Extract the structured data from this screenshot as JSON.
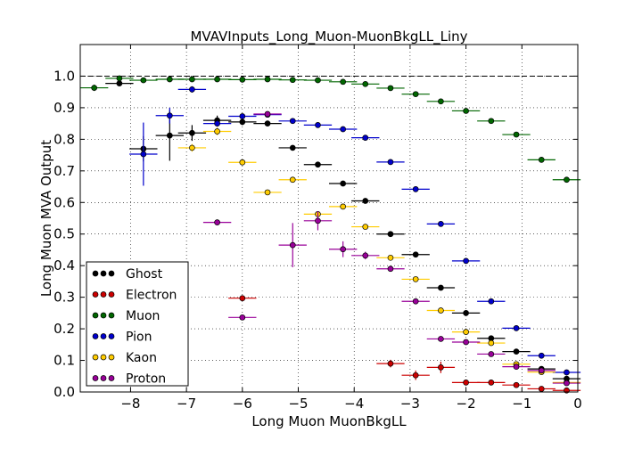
{
  "chart_data": {
    "type": "scatter",
    "title": "MVAVInputs_Long_Muon-MuonBkgLL_Liny",
    "xlabel": "Long Muon MuonBkgLL",
    "ylabel": "Long Muon MVA Output",
    "xlim": [
      -8.9,
      0
    ],
    "ylim": [
      0,
      1.1
    ],
    "xticks": [
      -8,
      -7,
      -6,
      -5,
      -4,
      -3,
      -2,
      -1,
      0
    ],
    "xtick_labels": [
      "−8",
      "−7",
      "−6",
      "−5",
      "−4",
      "−3",
      "−2",
      "−1",
      "0"
    ],
    "yticks": [
      0.0,
      0.1,
      0.2,
      0.3,
      0.4,
      0.5,
      0.6,
      0.7,
      0.8,
      0.9,
      1.0
    ],
    "ytick_labels": [
      "0.0",
      "0.1",
      "0.2",
      "0.3",
      "0.4",
      "0.5",
      "0.6",
      "0.7",
      "0.8",
      "0.9",
      "1.0"
    ],
    "grid": true,
    "reference_line_y": 1.0,
    "legend_position": "lower-left",
    "series": [
      {
        "name": "Ghost",
        "color": "#000000",
        "points": [
          {
            "x": -8.2,
            "y": 0.977,
            "xerr": 0.25,
            "yerr": 0.005
          },
          {
            "x": -7.77,
            "y": 0.77,
            "xerr": 0.25,
            "yerr": 0.04
          },
          {
            "x": -7.3,
            "y": 0.812,
            "xerr": 0.25,
            "yerr": 0.08
          },
          {
            "x": -6.9,
            "y": 0.82,
            "xerr": 0.25,
            "yerr": 0.025
          },
          {
            "x": -6.45,
            "y": 0.86,
            "xerr": 0.25,
            "yerr": 0.015
          },
          {
            "x": -6.0,
            "y": 0.855,
            "xerr": 0.25,
            "yerr": 0.01
          },
          {
            "x": -5.55,
            "y": 0.85,
            "xerr": 0.25,
            "yerr": 0.008
          },
          {
            "x": -5.1,
            "y": 0.773,
            "xerr": 0.25,
            "yerr": 0.006
          },
          {
            "x": -4.65,
            "y": 0.72,
            "xerr": 0.25,
            "yerr": 0.005
          },
          {
            "x": -4.2,
            "y": 0.66,
            "xerr": 0.25,
            "yerr": 0.004
          },
          {
            "x": -3.8,
            "y": 0.605,
            "xerr": 0.25,
            "yerr": 0.004
          },
          {
            "x": -3.35,
            "y": 0.5,
            "xerr": 0.25,
            "yerr": 0.004
          },
          {
            "x": -2.9,
            "y": 0.435,
            "xerr": 0.25,
            "yerr": 0.004
          },
          {
            "x": -2.45,
            "y": 0.33,
            "xerr": 0.25,
            "yerr": 0.004
          },
          {
            "x": -2.0,
            "y": 0.25,
            "xerr": 0.25,
            "yerr": 0.004
          },
          {
            "x": -1.55,
            "y": 0.17,
            "xerr": 0.25,
            "yerr": 0.004
          },
          {
            "x": -1.1,
            "y": 0.128,
            "xerr": 0.25,
            "yerr": 0.003
          },
          {
            "x": -0.65,
            "y": 0.073,
            "xerr": 0.25,
            "yerr": 0.003
          },
          {
            "x": -0.2,
            "y": 0.042,
            "xerr": 0.25,
            "yerr": 0.003
          }
        ]
      },
      {
        "name": "Electron",
        "color": "#cc0000",
        "points": [
          {
            "x": -6.0,
            "y": 0.297,
            "xerr": 0.25,
            "yerr": 0.005
          },
          {
            "x": -3.35,
            "y": 0.09,
            "xerr": 0.25,
            "yerr": 0.012
          },
          {
            "x": -2.9,
            "y": 0.053,
            "xerr": 0.25,
            "yerr": 0.015
          },
          {
            "x": -2.45,
            "y": 0.078,
            "xerr": 0.25,
            "yerr": 0.018
          },
          {
            "x": -2.0,
            "y": 0.03,
            "xerr": 0.25,
            "yerr": 0.004
          },
          {
            "x": -1.55,
            "y": 0.03,
            "xerr": 0.25,
            "yerr": 0.004
          },
          {
            "x": -1.1,
            "y": 0.022,
            "xerr": 0.25,
            "yerr": 0.003
          },
          {
            "x": -0.65,
            "y": 0.01,
            "xerr": 0.25,
            "yerr": 0.002
          },
          {
            "x": -0.2,
            "y": 0.005,
            "xerr": 0.25,
            "yerr": 0.002
          }
        ]
      },
      {
        "name": "Muon",
        "color": "#006600",
        "points": [
          {
            "x": -8.65,
            "y": 0.963,
            "xerr": 0.25,
            "yerr": 0.01
          },
          {
            "x": -8.2,
            "y": 0.993,
            "xerr": 0.25,
            "yerr": 0.005
          },
          {
            "x": -7.77,
            "y": 0.987,
            "xerr": 0.25,
            "yerr": 0.003
          },
          {
            "x": -7.3,
            "y": 0.99,
            "xerr": 0.25,
            "yerr": 0.003
          },
          {
            "x": -6.9,
            "y": 0.99,
            "xerr": 0.25,
            "yerr": 0.003
          },
          {
            "x": -6.45,
            "y": 0.99,
            "xerr": 0.25,
            "yerr": 0.003
          },
          {
            "x": -6.0,
            "y": 0.989,
            "xerr": 0.25,
            "yerr": 0.003
          },
          {
            "x": -5.55,
            "y": 0.99,
            "xerr": 0.25,
            "yerr": 0.003
          },
          {
            "x": -5.1,
            "y": 0.988,
            "xerr": 0.25,
            "yerr": 0.003
          },
          {
            "x": -4.65,
            "y": 0.987,
            "xerr": 0.25,
            "yerr": 0.003
          },
          {
            "x": -4.2,
            "y": 0.982,
            "xerr": 0.25,
            "yerr": 0.003
          },
          {
            "x": -3.8,
            "y": 0.975,
            "xerr": 0.25,
            "yerr": 0.003
          },
          {
            "x": -3.35,
            "y": 0.962,
            "xerr": 0.25,
            "yerr": 0.003
          },
          {
            "x": -2.9,
            "y": 0.943,
            "xerr": 0.25,
            "yerr": 0.003
          },
          {
            "x": -2.45,
            "y": 0.92,
            "xerr": 0.25,
            "yerr": 0.003
          },
          {
            "x": -2.0,
            "y": 0.89,
            "xerr": 0.25,
            "yerr": 0.003
          },
          {
            "x": -1.55,
            "y": 0.858,
            "xerr": 0.25,
            "yerr": 0.003
          },
          {
            "x": -1.1,
            "y": 0.815,
            "xerr": 0.25,
            "yerr": 0.003
          },
          {
            "x": -0.65,
            "y": 0.735,
            "xerr": 0.25,
            "yerr": 0.003
          },
          {
            "x": -0.2,
            "y": 0.672,
            "xerr": 0.25,
            "yerr": 0.003
          }
        ]
      },
      {
        "name": "Pion",
        "color": "#0000cc",
        "points": [
          {
            "x": -7.77,
            "y": 0.753,
            "xerr": 0.25,
            "yerr": 0.1
          },
          {
            "x": -7.3,
            "y": 0.875,
            "xerr": 0.25,
            "yerr": 0.025
          },
          {
            "x": -6.9,
            "y": 0.958,
            "xerr": 0.25,
            "yerr": 0.01
          },
          {
            "x": -6.45,
            "y": 0.85,
            "xerr": 0.25,
            "yerr": 0.01
          },
          {
            "x": -6.0,
            "y": 0.873,
            "xerr": 0.25,
            "yerr": 0.006
          },
          {
            "x": -5.55,
            "y": 0.878,
            "xerr": 0.25,
            "yerr": 0.005
          },
          {
            "x": -5.1,
            "y": 0.858,
            "xerr": 0.25,
            "yerr": 0.004
          },
          {
            "x": -4.65,
            "y": 0.845,
            "xerr": 0.25,
            "yerr": 0.004
          },
          {
            "x": -4.2,
            "y": 0.832,
            "xerr": 0.25,
            "yerr": 0.003
          },
          {
            "x": -3.8,
            "y": 0.805,
            "xerr": 0.25,
            "yerr": 0.003
          },
          {
            "x": -3.35,
            "y": 0.728,
            "xerr": 0.25,
            "yerr": 0.003
          },
          {
            "x": -2.9,
            "y": 0.642,
            "xerr": 0.25,
            "yerr": 0.003
          },
          {
            "x": -2.45,
            "y": 0.532,
            "xerr": 0.25,
            "yerr": 0.003
          },
          {
            "x": -2.0,
            "y": 0.415,
            "xerr": 0.25,
            "yerr": 0.003
          },
          {
            "x": -1.55,
            "y": 0.287,
            "xerr": 0.25,
            "yerr": 0.003
          },
          {
            "x": -1.1,
            "y": 0.202,
            "xerr": 0.25,
            "yerr": 0.003
          },
          {
            "x": -0.65,
            "y": 0.115,
            "xerr": 0.25,
            "yerr": 0.003
          },
          {
            "x": -0.2,
            "y": 0.062,
            "xerr": 0.25,
            "yerr": 0.003
          }
        ]
      },
      {
        "name": "Kaon",
        "color": "#ffcc00",
        "points": [
          {
            "x": -6.9,
            "y": 0.773,
            "xerr": 0.25,
            "yerr": 0.012
          },
          {
            "x": -6.45,
            "y": 0.825,
            "xerr": 0.25,
            "yerr": 0.012
          },
          {
            "x": -6.0,
            "y": 0.727,
            "xerr": 0.25,
            "yerr": 0.008
          },
          {
            "x": -5.55,
            "y": 0.632,
            "xerr": 0.25,
            "yerr": 0.007
          },
          {
            "x": -5.1,
            "y": 0.672,
            "xerr": 0.25,
            "yerr": 0.007
          },
          {
            "x": -4.65,
            "y": 0.563,
            "xerr": 0.25,
            "yerr": 0.006
          },
          {
            "x": -4.2,
            "y": 0.587,
            "xerr": 0.25,
            "yerr": 0.005
          },
          {
            "x": -3.8,
            "y": 0.523,
            "xerr": 0.25,
            "yerr": 0.005
          },
          {
            "x": -3.35,
            "y": 0.425,
            "xerr": 0.25,
            "yerr": 0.004
          },
          {
            "x": -2.9,
            "y": 0.357,
            "xerr": 0.25,
            "yerr": 0.004
          },
          {
            "x": -2.45,
            "y": 0.258,
            "xerr": 0.25,
            "yerr": 0.004
          },
          {
            "x": -2.0,
            "y": 0.19,
            "xerr": 0.25,
            "yerr": 0.004
          },
          {
            "x": -1.55,
            "y": 0.155,
            "xerr": 0.25,
            "yerr": 0.003
          },
          {
            "x": -1.1,
            "y": 0.088,
            "xerr": 0.25,
            "yerr": 0.003
          },
          {
            "x": -0.65,
            "y": 0.063,
            "xerr": 0.25,
            "yerr": 0.003
          },
          {
            "x": -0.2,
            "y": 0.03,
            "xerr": 0.25,
            "yerr": 0.003
          }
        ]
      },
      {
        "name": "Proton",
        "color": "#990099",
        "points": [
          {
            "x": -6.45,
            "y": 0.537,
            "xerr": 0.25,
            "yerr": 0.005
          },
          {
            "x": -6.0,
            "y": 0.236,
            "xerr": 0.25,
            "yerr": 0.005
          },
          {
            "x": -5.55,
            "y": 0.88,
            "xerr": 0.25,
            "yerr": 0.008
          },
          {
            "x": -5.1,
            "y": 0.465,
            "xerr": 0.25,
            "yerr": 0.07
          },
          {
            "x": -4.65,
            "y": 0.542,
            "xerr": 0.25,
            "yerr": 0.03
          },
          {
            "x": -4.2,
            "y": 0.452,
            "xerr": 0.25,
            "yerr": 0.025
          },
          {
            "x": -3.8,
            "y": 0.432,
            "xerr": 0.25,
            "yerr": 0.012
          },
          {
            "x": -3.35,
            "y": 0.39,
            "xerr": 0.25,
            "yerr": 0.006
          },
          {
            "x": -2.9,
            "y": 0.287,
            "xerr": 0.25,
            "yerr": 0.005
          },
          {
            "x": -2.45,
            "y": 0.168,
            "xerr": 0.25,
            "yerr": 0.004
          },
          {
            "x": -2.0,
            "y": 0.158,
            "xerr": 0.25,
            "yerr": 0.004
          },
          {
            "x": -1.55,
            "y": 0.12,
            "xerr": 0.25,
            "yerr": 0.003
          },
          {
            "x": -1.1,
            "y": 0.08,
            "xerr": 0.25,
            "yerr": 0.003
          },
          {
            "x": -0.65,
            "y": 0.068,
            "xerr": 0.25,
            "yerr": 0.003
          },
          {
            "x": -0.2,
            "y": 0.028,
            "xerr": 0.25,
            "yerr": 0.003
          }
        ]
      }
    ]
  }
}
